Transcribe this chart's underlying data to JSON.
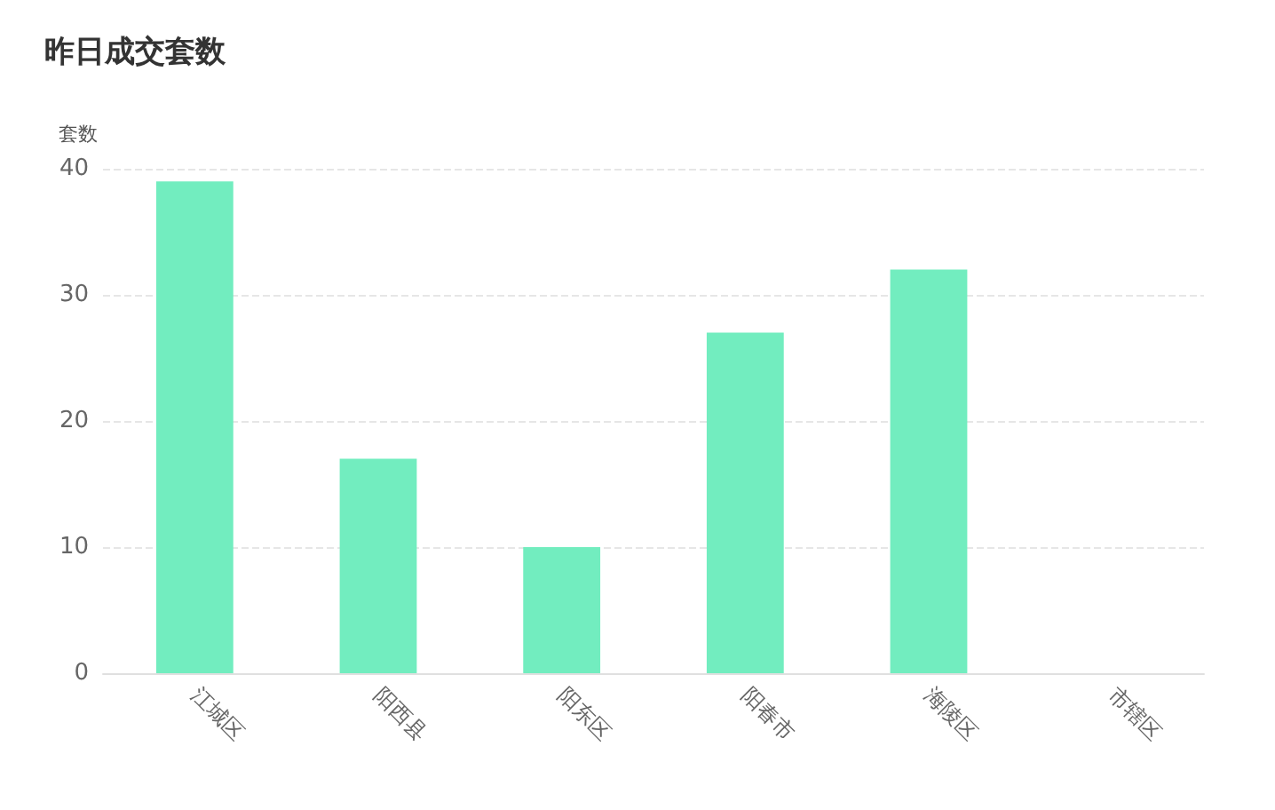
{
  "chart_data": {
    "type": "bar",
    "title": "昨日成交套数",
    "ylabel": "套数",
    "categories": [
      "江城区",
      "阳西县",
      "阳东区",
      "阳春市",
      "海陵区",
      "市辖区"
    ],
    "values": [
      39,
      17,
      10,
      27,
      32,
      0
    ],
    "color": "#72edbf",
    "ylim": [
      0,
      40
    ],
    "yticks": [
      0,
      10,
      20,
      30,
      40
    ],
    "grid": "y"
  }
}
